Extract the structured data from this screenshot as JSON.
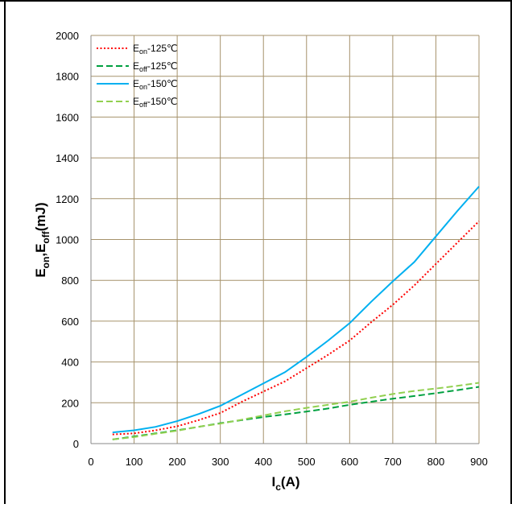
{
  "chart_data": {
    "type": "line",
    "xlabel": {
      "main": "I",
      "sub": "c",
      "rest": "(A)"
    },
    "ylabel": {
      "p1": "E",
      "s1": "on",
      "p2": ",E",
      "s2": "off",
      "p3": "(mJ)"
    },
    "xlim": [
      0,
      900
    ],
    "ylim": [
      0,
      2000
    ],
    "xticks": [
      0,
      100,
      200,
      300,
      400,
      500,
      600,
      700,
      800,
      900
    ],
    "yticks": [
      0,
      200,
      400,
      600,
      800,
      1000,
      1200,
      1400,
      1600,
      1800,
      2000
    ],
    "grid": true,
    "legend_position": "top-left",
    "series": [
      {
        "legend": {
          "main": "E",
          "sub": "on",
          "rest": "-125℃"
        },
        "color": "#ff0000",
        "style": "dotted",
        "x": [
          50,
          100,
          150,
          200,
          250,
          300,
          350,
          400,
          450,
          500,
          550,
          600,
          650,
          700,
          750,
          800,
          850,
          900
        ],
        "y": [
          45,
          50,
          65,
          85,
          115,
          150,
          205,
          255,
          305,
          370,
          435,
          505,
          595,
          680,
          775,
          880,
          985,
          1090
        ]
      },
      {
        "legend": {
          "main": "E",
          "sub": "off",
          "rest": "-125℃"
        },
        "color": "#00a040",
        "style": "dashed",
        "x": [
          50,
          100,
          150,
          200,
          250,
          300,
          350,
          400,
          450,
          500,
          550,
          600,
          650,
          700,
          750,
          800,
          850,
          900
        ],
        "y": [
          20,
          35,
          50,
          65,
          82,
          100,
          115,
          130,
          143,
          157,
          172,
          190,
          205,
          220,
          233,
          247,
          262,
          278
        ]
      },
      {
        "legend": {
          "main": "E",
          "sub": "on",
          "rest": "-150℃"
        },
        "color": "#00b0f0",
        "style": "solid",
        "x": [
          50,
          100,
          150,
          200,
          250,
          300,
          350,
          400,
          450,
          500,
          550,
          600,
          650,
          700,
          750,
          800,
          850,
          900
        ],
        "y": [
          55,
          65,
          82,
          110,
          145,
          185,
          240,
          295,
          350,
          425,
          505,
          590,
          695,
          795,
          890,
          1015,
          1140,
          1260
        ]
      },
      {
        "legend": {
          "main": "E",
          "sub": "off",
          "rest": "-150℃"
        },
        "color": "#92d050",
        "style": "dashed",
        "x": [
          50,
          100,
          150,
          200,
          250,
          300,
          350,
          400,
          450,
          500,
          550,
          600,
          650,
          700,
          750,
          800,
          850,
          900
        ],
        "y": [
          20,
          32,
          48,
          63,
          83,
          98,
          117,
          138,
          158,
          175,
          190,
          205,
          225,
          243,
          258,
          270,
          283,
          298
        ]
      }
    ]
  }
}
